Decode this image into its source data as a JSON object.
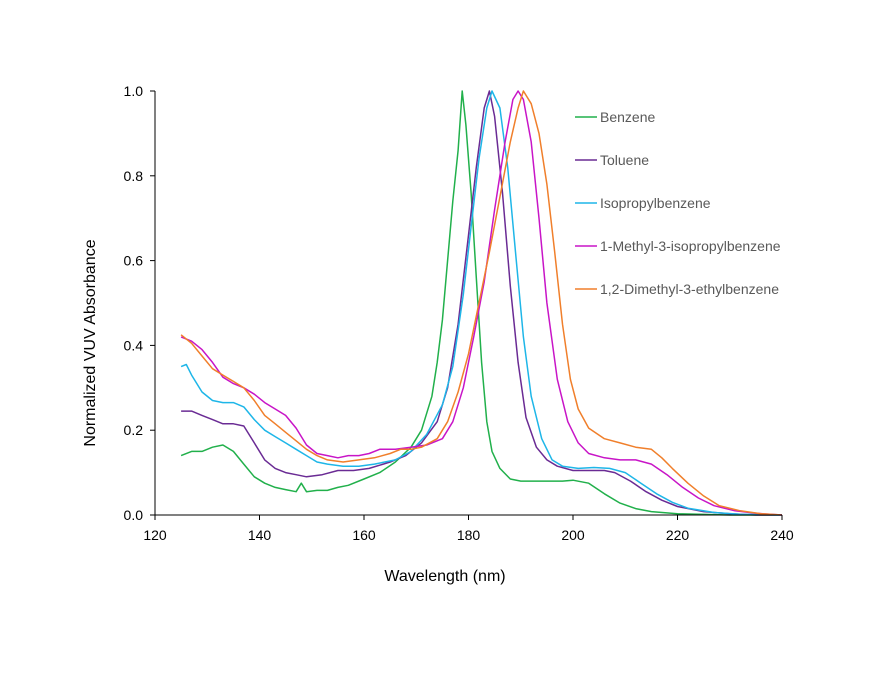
{
  "chart_data": {
    "type": "line",
    "title": "",
    "xlabel": "Wavelength (nm)",
    "ylabel": "Normalized VUV Absorbance",
    "xlim": [
      120,
      240
    ],
    "ylim": [
      0,
      1.0
    ],
    "x_ticks": [
      "120",
      "140",
      "160",
      "180",
      "200",
      "220",
      "240"
    ],
    "y_ticks": [
      "0.0",
      "0.2",
      "0.4",
      "0.6",
      "0.8",
      "1.0"
    ],
    "grid": false,
    "legend_position": "right",
    "series": [
      {
        "name": "Benzene",
        "color": "#21B04B",
        "points": [
          [
            125,
            0.14
          ],
          [
            127,
            0.15
          ],
          [
            129,
            0.15
          ],
          [
            131,
            0.16
          ],
          [
            133,
            0.165
          ],
          [
            135,
            0.15
          ],
          [
            137,
            0.12
          ],
          [
            139,
            0.09
          ],
          [
            141,
            0.075
          ],
          [
            143,
            0.065
          ],
          [
            145,
            0.06
          ],
          [
            147,
            0.055
          ],
          [
            148,
            0.075
          ],
          [
            149,
            0.055
          ],
          [
            151,
            0.058
          ],
          [
            153,
            0.058
          ],
          [
            155,
            0.065
          ],
          [
            157,
            0.07
          ],
          [
            160,
            0.085
          ],
          [
            163,
            0.1
          ],
          [
            166,
            0.125
          ],
          [
            169,
            0.16
          ],
          [
            171,
            0.2
          ],
          [
            173,
            0.28
          ],
          [
            174,
            0.36
          ],
          [
            175,
            0.46
          ],
          [
            176,
            0.6
          ],
          [
            177,
            0.74
          ],
          [
            178,
            0.86
          ],
          [
            178.8,
            1.0
          ],
          [
            179.5,
            0.92
          ],
          [
            180.5,
            0.76
          ],
          [
            181.5,
            0.56
          ],
          [
            182.5,
            0.36
          ],
          [
            183.5,
            0.22
          ],
          [
            184.5,
            0.15
          ],
          [
            186,
            0.11
          ],
          [
            188,
            0.085
          ],
          [
            190,
            0.08
          ],
          [
            194,
            0.08
          ],
          [
            198,
            0.08
          ],
          [
            200,
            0.082
          ],
          [
            203,
            0.075
          ],
          [
            206,
            0.05
          ],
          [
            209,
            0.028
          ],
          [
            212,
            0.015
          ],
          [
            215,
            0.008
          ],
          [
            220,
            0.003
          ],
          [
            230,
            0.0
          ],
          [
            240,
            0.0
          ]
        ]
      },
      {
        "name": "Toluene",
        "color": "#6A2B94",
        "points": [
          [
            125,
            0.245
          ],
          [
            127,
            0.245
          ],
          [
            129,
            0.235
          ],
          [
            131,
            0.225
          ],
          [
            133,
            0.215
          ],
          [
            135,
            0.215
          ],
          [
            137,
            0.21
          ],
          [
            139,
            0.17
          ],
          [
            141,
            0.13
          ],
          [
            143,
            0.11
          ],
          [
            145,
            0.1
          ],
          [
            147,
            0.095
          ],
          [
            149,
            0.09
          ],
          [
            152,
            0.095
          ],
          [
            155,
            0.105
          ],
          [
            158,
            0.105
          ],
          [
            161,
            0.11
          ],
          [
            165,
            0.125
          ],
          [
            168,
            0.14
          ],
          [
            171,
            0.17
          ],
          [
            174,
            0.22
          ],
          [
            176,
            0.3
          ],
          [
            178,
            0.45
          ],
          [
            180,
            0.66
          ],
          [
            181.5,
            0.82
          ],
          [
            183,
            0.96
          ],
          [
            184,
            1.0
          ],
          [
            185,
            0.94
          ],
          [
            186.5,
            0.76
          ],
          [
            188,
            0.54
          ],
          [
            189.5,
            0.36
          ],
          [
            191,
            0.23
          ],
          [
            193,
            0.16
          ],
          [
            195,
            0.13
          ],
          [
            197,
            0.115
          ],
          [
            200,
            0.105
          ],
          [
            203,
            0.105
          ],
          [
            206,
            0.105
          ],
          [
            208,
            0.1
          ],
          [
            211,
            0.08
          ],
          [
            214,
            0.055
          ],
          [
            217,
            0.035
          ],
          [
            220,
            0.02
          ],
          [
            225,
            0.008
          ],
          [
            230,
            0.003
          ],
          [
            235,
            0.0
          ],
          [
            240,
            0.0
          ]
        ]
      },
      {
        "name": "Isopropylbenzene",
        "color": "#1EB6E8",
        "points": [
          [
            125,
            0.35
          ],
          [
            126,
            0.355
          ],
          [
            127,
            0.33
          ],
          [
            129,
            0.29
          ],
          [
            131,
            0.27
          ],
          [
            133,
            0.265
          ],
          [
            135,
            0.265
          ],
          [
            137,
            0.255
          ],
          [
            139,
            0.225
          ],
          [
            141,
            0.2
          ],
          [
            143,
            0.185
          ],
          [
            145,
            0.17
          ],
          [
            147,
            0.155
          ],
          [
            149,
            0.14
          ],
          [
            151,
            0.125
          ],
          [
            153,
            0.12
          ],
          [
            156,
            0.115
          ],
          [
            159,
            0.115
          ],
          [
            162,
            0.12
          ],
          [
            166,
            0.13
          ],
          [
            169,
            0.15
          ],
          [
            172,
            0.19
          ],
          [
            175,
            0.26
          ],
          [
            177,
            0.35
          ],
          [
            179,
            0.52
          ],
          [
            180.5,
            0.68
          ],
          [
            182,
            0.84
          ],
          [
            183.5,
            0.96
          ],
          [
            184.5,
            1.0
          ],
          [
            186,
            0.96
          ],
          [
            187.5,
            0.82
          ],
          [
            189,
            0.62
          ],
          [
            190.5,
            0.42
          ],
          [
            192,
            0.28
          ],
          [
            194,
            0.18
          ],
          [
            196,
            0.13
          ],
          [
            198,
            0.115
          ],
          [
            201,
            0.11
          ],
          [
            204,
            0.112
          ],
          [
            207,
            0.11
          ],
          [
            210,
            0.1
          ],
          [
            213,
            0.075
          ],
          [
            216,
            0.05
          ],
          [
            219,
            0.03
          ],
          [
            222,
            0.016
          ],
          [
            227,
            0.006
          ],
          [
            232,
            0.002
          ],
          [
            240,
            0.0
          ]
        ]
      },
      {
        "name": "1-Methyl-3-isopropylbenzene",
        "color": "#C815C7",
        "points": [
          [
            125,
            0.42
          ],
          [
            127,
            0.41
          ],
          [
            129,
            0.39
          ],
          [
            131,
            0.36
          ],
          [
            133,
            0.325
          ],
          [
            135,
            0.31
          ],
          [
            137,
            0.3
          ],
          [
            139,
            0.285
          ],
          [
            141,
            0.265
          ],
          [
            143,
            0.25
          ],
          [
            145,
            0.235
          ],
          [
            147,
            0.205
          ],
          [
            149,
            0.165
          ],
          [
            151,
            0.145
          ],
          [
            153,
            0.14
          ],
          [
            155,
            0.135
          ],
          [
            157,
            0.14
          ],
          [
            159,
            0.14
          ],
          [
            161,
            0.145
          ],
          [
            163,
            0.155
          ],
          [
            166,
            0.155
          ],
          [
            169,
            0.16
          ],
          [
            172,
            0.165
          ],
          [
            175,
            0.18
          ],
          [
            177,
            0.22
          ],
          [
            179,
            0.3
          ],
          [
            181,
            0.42
          ],
          [
            183,
            0.55
          ],
          [
            185,
            0.72
          ],
          [
            187,
            0.88
          ],
          [
            188.5,
            0.98
          ],
          [
            189.5,
            1.0
          ],
          [
            190.5,
            0.98
          ],
          [
            192,
            0.88
          ],
          [
            193.5,
            0.7
          ],
          [
            195,
            0.5
          ],
          [
            197,
            0.32
          ],
          [
            199,
            0.22
          ],
          [
            201,
            0.17
          ],
          [
            203,
            0.145
          ],
          [
            206,
            0.135
          ],
          [
            209,
            0.13
          ],
          [
            212,
            0.13
          ],
          [
            215,
            0.12
          ],
          [
            218,
            0.095
          ],
          [
            221,
            0.065
          ],
          [
            224,
            0.04
          ],
          [
            227,
            0.022
          ],
          [
            231,
            0.01
          ],
          [
            235,
            0.004
          ],
          [
            240,
            0.0
          ]
        ]
      },
      {
        "name": "1,2-Dimethyl-3-ethylbenzene",
        "color": "#F07F2B",
        "points": [
          [
            125,
            0.425
          ],
          [
            127,
            0.405
          ],
          [
            129,
            0.375
          ],
          [
            131,
            0.345
          ],
          [
            133,
            0.33
          ],
          [
            135,
            0.315
          ],
          [
            137,
            0.3
          ],
          [
            139,
            0.27
          ],
          [
            141,
            0.235
          ],
          [
            143,
            0.215
          ],
          [
            145,
            0.195
          ],
          [
            147,
            0.175
          ],
          [
            149,
            0.155
          ],
          [
            151,
            0.14
          ],
          [
            153,
            0.13
          ],
          [
            156,
            0.125
          ],
          [
            159,
            0.13
          ],
          [
            162,
            0.135
          ],
          [
            165,
            0.145
          ],
          [
            167,
            0.155
          ],
          [
            169,
            0.155
          ],
          [
            171,
            0.16
          ],
          [
            174,
            0.18
          ],
          [
            176,
            0.22
          ],
          [
            178,
            0.29
          ],
          [
            180,
            0.38
          ],
          [
            182,
            0.5
          ],
          [
            184,
            0.62
          ],
          [
            186,
            0.75
          ],
          [
            188,
            0.88
          ],
          [
            189.5,
            0.96
          ],
          [
            190.5,
            1.0
          ],
          [
            192,
            0.97
          ],
          [
            193.5,
            0.9
          ],
          [
            195,
            0.78
          ],
          [
            196.5,
            0.62
          ],
          [
            198,
            0.45
          ],
          [
            199.5,
            0.32
          ],
          [
            201,
            0.25
          ],
          [
            203,
            0.205
          ],
          [
            206,
            0.18
          ],
          [
            209,
            0.17
          ],
          [
            212,
            0.16
          ],
          [
            215,
            0.155
          ],
          [
            217,
            0.135
          ],
          [
            219,
            0.11
          ],
          [
            222,
            0.075
          ],
          [
            225,
            0.045
          ],
          [
            228,
            0.022
          ],
          [
            232,
            0.01
          ],
          [
            236,
            0.003
          ],
          [
            240,
            0.0
          ]
        ]
      }
    ]
  }
}
